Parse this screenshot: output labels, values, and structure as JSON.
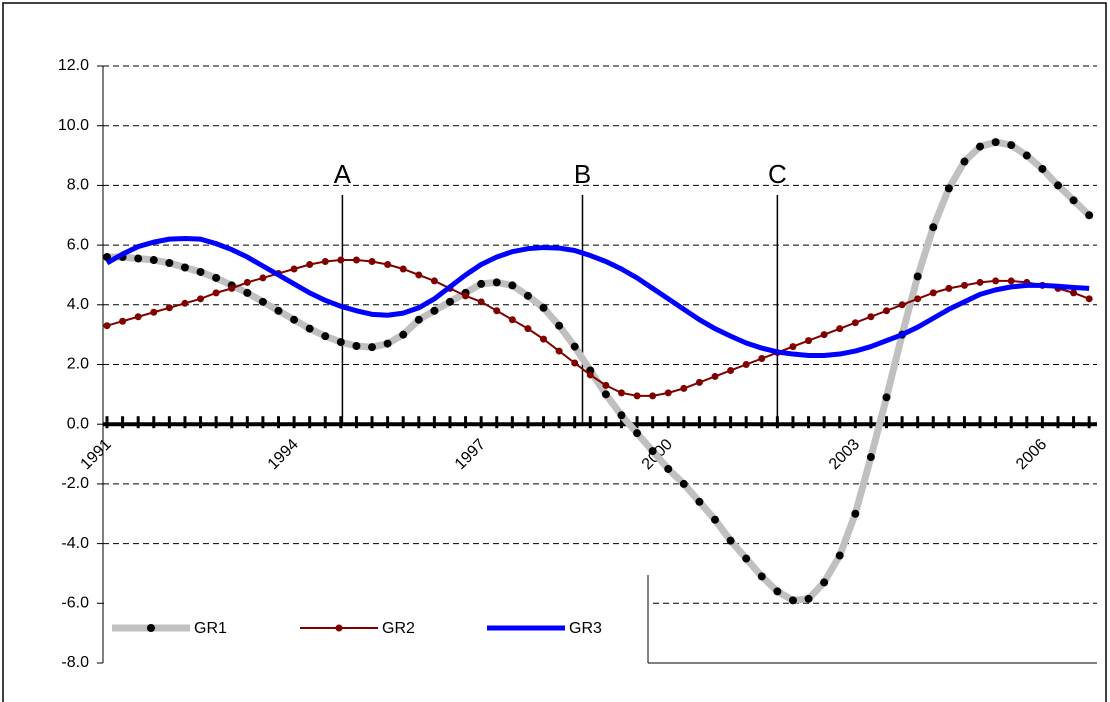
{
  "chart_data": {
    "type": "line",
    "categories": [
      "1991",
      null,
      null,
      null,
      null,
      null,
      null,
      null,
      null,
      null,
      null,
      null,
      "1994",
      null,
      null,
      null,
      null,
      null,
      null,
      null,
      null,
      null,
      null,
      null,
      "1997",
      null,
      null,
      null,
      null,
      null,
      null,
      null,
      null,
      null,
      null,
      null,
      "2000",
      null,
      null,
      null,
      null,
      null,
      null,
      null,
      null,
      null,
      null,
      null,
      "2003",
      null,
      null,
      null,
      null,
      null,
      null,
      null,
      null,
      null,
      null,
      null,
      "2006",
      null,
      null,
      null
    ],
    "series": [
      {
        "name": "GR1",
        "color": "#c0c0c0",
        "marker_color": "#000000",
        "markers": true,
        "values": [
          5.6,
          5.6,
          5.55,
          5.5,
          5.4,
          5.25,
          5.1,
          4.9,
          4.65,
          4.4,
          4.1,
          3.8,
          3.5,
          3.2,
          2.95,
          2.75,
          2.62,
          2.58,
          2.7,
          3.0,
          3.5,
          3.8,
          4.1,
          4.4,
          4.7,
          4.75,
          4.65,
          4.3,
          3.9,
          3.3,
          2.6,
          1.8,
          1.0,
          0.3,
          -0.3,
          -0.9,
          -1.5,
          -2.0,
          -2.6,
          -3.2,
          -3.9,
          -4.5,
          -5.1,
          -5.6,
          -5.9,
          -5.85,
          -5.3,
          -4.4,
          -3.0,
          -1.1,
          0.9,
          3.0,
          4.95,
          6.6,
          7.9,
          8.8,
          9.3,
          9.45,
          9.35,
          9.0,
          8.55,
          8.0,
          7.5,
          7.0
        ]
      },
      {
        "name": "GR2",
        "color": "#800000",
        "marker_color": "#800000",
        "markers": true,
        "values": [
          3.3,
          3.45,
          3.6,
          3.75,
          3.9,
          4.05,
          4.2,
          4.4,
          4.55,
          4.75,
          4.9,
          5.05,
          5.2,
          5.35,
          5.45,
          5.5,
          5.5,
          5.45,
          5.35,
          5.2,
          5.0,
          4.8,
          4.55,
          4.3,
          4.1,
          3.8,
          3.5,
          3.2,
          2.85,
          2.45,
          2.05,
          1.65,
          1.3,
          1.05,
          0.95,
          0.95,
          1.05,
          1.2,
          1.4,
          1.6,
          1.8,
          2.0,
          2.2,
          2.4,
          2.6,
          2.8,
          3.0,
          3.2,
          3.4,
          3.6,
          3.8,
          4.0,
          4.2,
          4.4,
          4.55,
          4.65,
          4.75,
          4.8,
          4.8,
          4.75,
          4.65,
          4.55,
          4.4,
          4.2
        ]
      },
      {
        "name": "GR3",
        "color": "#0000ff",
        "markers": false,
        "values": [
          5.4,
          5.7,
          5.95,
          6.1,
          6.2,
          6.22,
          6.2,
          6.05,
          5.85,
          5.6,
          5.3,
          5.0,
          4.7,
          4.4,
          4.15,
          3.95,
          3.8,
          3.68,
          3.65,
          3.72,
          3.9,
          4.2,
          4.6,
          5.0,
          5.35,
          5.6,
          5.78,
          5.88,
          5.92,
          5.9,
          5.82,
          5.65,
          5.45,
          5.2,
          4.9,
          4.55,
          4.2,
          3.85,
          3.5,
          3.2,
          2.95,
          2.72,
          2.55,
          2.42,
          2.35,
          2.3,
          2.3,
          2.35,
          2.45,
          2.6,
          2.8,
          3.0,
          3.25,
          3.55,
          3.85,
          4.1,
          4.35,
          4.5,
          4.6,
          4.65,
          4.65,
          4.62,
          4.58,
          4.55
        ]
      }
    ],
    "annotations": [
      {
        "text": "A",
        "x": 15.1
      },
      {
        "text": "B",
        "x": 30.5
      },
      {
        "text": "C",
        "x": 43.0
      }
    ],
    "ylim": [
      -8,
      12
    ],
    "yticks": [
      {
        "value": -8,
        "label": "-8.0"
      },
      {
        "value": -6,
        "label": "-6.0"
      },
      {
        "value": -4,
        "label": "-4.0"
      },
      {
        "value": -2,
        "label": "-2.0"
      },
      {
        "value": 0,
        "label": "0.0"
      },
      {
        "value": 2,
        "label": "2.0"
      },
      {
        "value": 4,
        "label": "4.0"
      },
      {
        "value": 6,
        "label": "6.0"
      },
      {
        "value": 8,
        "label": "8.0"
      },
      {
        "value": 10,
        "label": "10.0"
      },
      {
        "value": 12,
        "label": "12.0"
      }
    ],
    "grid": true,
    "legend": "bottom-left"
  }
}
